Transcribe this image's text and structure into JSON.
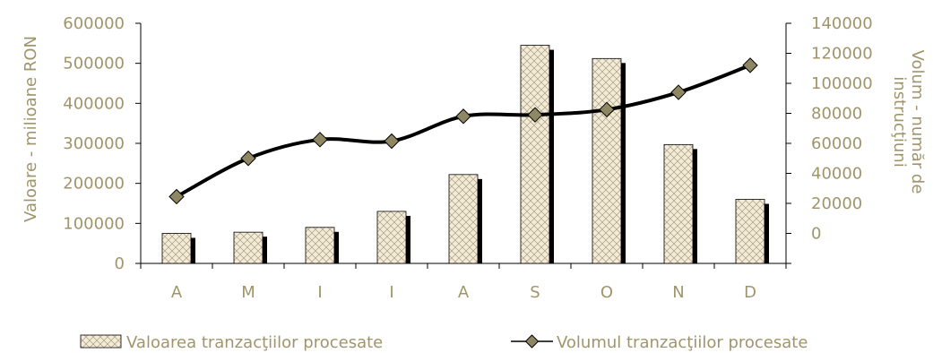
{
  "chart_data": {
    "type": "bar",
    "categories": [
      "A",
      "M",
      "I",
      "I",
      "A",
      "S",
      "O",
      "N",
      "D"
    ],
    "series": [
      {
        "name": "Valoarea tranzacţiilor procesate",
        "kind": "bar",
        "axis": "left",
        "values": [
          75000,
          78000,
          90000,
          130000,
          222000,
          545000,
          512000,
          297000,
          160000
        ]
      },
      {
        "name": "Volumul tranzacţiilor procesate",
        "kind": "line",
        "axis": "right",
        "values": [
          24500,
          50000,
          62500,
          61500,
          78000,
          79000,
          82500,
          94000,
          112000
        ]
      }
    ],
    "ylabel_left": "Valoare - milioane RON",
    "ylabel_right": "Volum - număr de instrucţiuni",
    "ylim_left": [
      0,
      600000
    ],
    "yticks_left": [
      "0",
      "100000",
      "200000",
      "300000",
      "400000",
      "500000",
      "600000"
    ],
    "ylim_right": [
      -20000,
      140000
    ],
    "yticks_right": [
      "0",
      "20000",
      "40000",
      "60000",
      "80000",
      "100000",
      "120000",
      "140000"
    ],
    "legend_position": "bottom",
    "colors": {
      "text": "#a0956a",
      "axis": "#000000",
      "bar_fill": "#f3ecda",
      "bar_pattern": "#b8ac8c",
      "bar_shadow": "#000000",
      "line": "#000000",
      "marker": "#8f8663"
    },
    "grid": false
  }
}
